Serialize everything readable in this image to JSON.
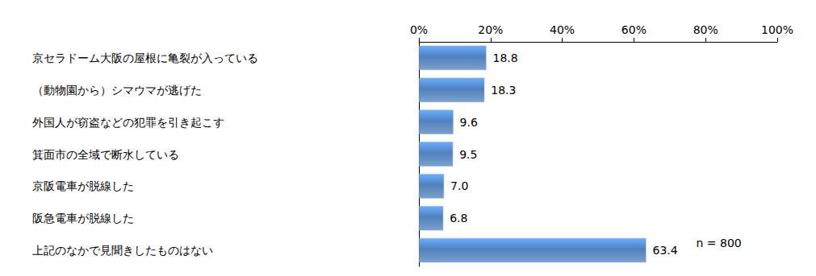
{
  "chart_data": {
    "type": "bar",
    "orientation": "horizontal",
    "categories": [
      "京セラドーム大阪の屋根に亀裂が入っている",
      "（動物園から）シマウマが逃げた",
      "外国人が窃盗などの犯罪を引き起こす",
      "箕面市の全域で断水している",
      "京阪電車が脱線した",
      "阪急電車が脱線した",
      "上記のなかで見聞きしたものはない"
    ],
    "values": [
      18.8,
      18.3,
      9.6,
      9.5,
      7.0,
      6.8,
      63.4
    ],
    "value_labels": [
      "18.8",
      "18.3",
      "9.6",
      "9.5",
      "7.0",
      "6.8",
      "63.4"
    ],
    "color": "#4f81bd",
    "xlim": [
      0,
      100
    ],
    "xticks": [
      {
        "value": 0,
        "label": "0%"
      },
      {
        "value": 20,
        "label": "20%"
      },
      {
        "value": 40,
        "label": "40%"
      },
      {
        "value": 60,
        "label": "60%"
      },
      {
        "value": 80,
        "label": "80%"
      },
      {
        "value": 100,
        "label": "100%"
      }
    ],
    "grid": false,
    "data_labels": true,
    "annotation": "n = 800"
  }
}
